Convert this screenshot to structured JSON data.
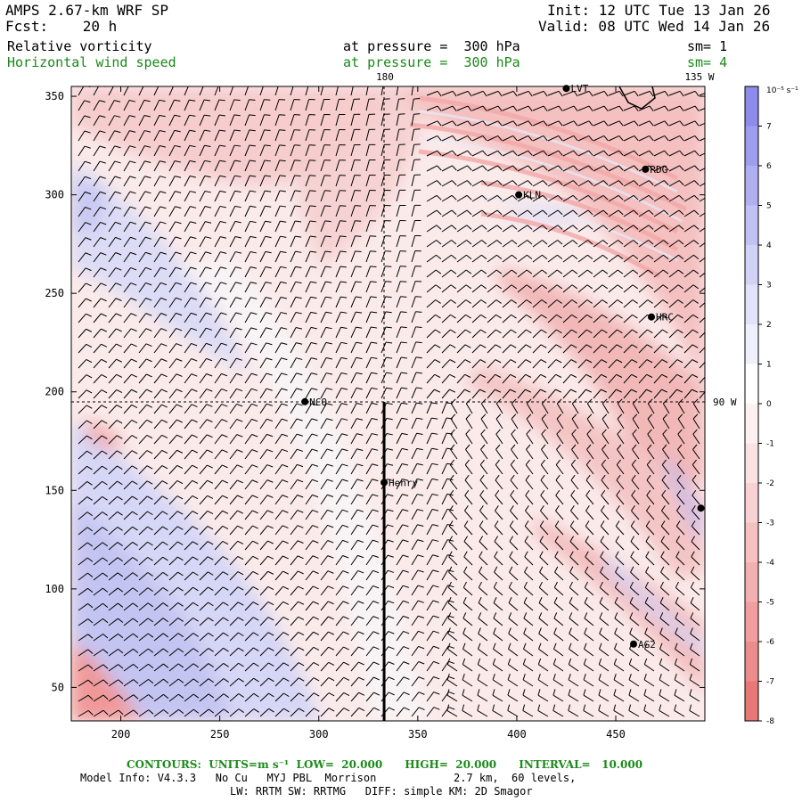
{
  "header": {
    "model_line": "AMPS 2.67-km WRF SP",
    "fcst_label": "Fcst:",
    "fcst_value": "20 h",
    "init_line": "Init: 12 UTC Tue 13 Jan 26",
    "valid_line": "Valid: 08 UTC Wed 14 Jan 26",
    "field1_name": "Relative vorticity",
    "field1_level": "at pressure =  300 hPa",
    "field1_sm": "sm= 1",
    "field2_name": "Horizontal wind speed",
    "field2_level": "at pressure =  300 hPa",
    "field2_sm": "sm= 4"
  },
  "map": {
    "x_ticks": [
      "200",
      "250",
      "300",
      "350",
      "400",
      "450"
    ],
    "y_ticks": [
      "50",
      "100",
      "150",
      "200",
      "250",
      "300",
      "350"
    ],
    "x_range": [
      175,
      495
    ],
    "y_range": [
      33,
      355
    ],
    "meridian_label_180": "180",
    "meridian_label_135w": "135 W",
    "meridian_label_90w": "90 W",
    "stations": [
      {
        "name": "LVT",
        "x": 425,
        "y": 354
      },
      {
        "name": "RDG",
        "x": 465,
        "y": 313
      },
      {
        "name": "KLN",
        "x": 401,
        "y": 300
      },
      {
        "name": "HRC",
        "x": 468,
        "y": 238
      },
      {
        "name": "NCO",
        "x": 293,
        "y": 195
      },
      {
        "name": "Henry",
        "x": 333,
        "y": 154
      },
      {
        "name": "AG2",
        "x": 459,
        "y": 72
      },
      {
        "name": "",
        "x": 493,
        "y": 141
      }
    ],
    "cross_section_x": 333
  },
  "colorbar": {
    "units": "10⁻⁵ s⁻¹",
    "levels": [
      "7",
      "6",
      "5",
      "4",
      "3",
      "2",
      "1",
      "0",
      "-1",
      "-2",
      "-3",
      "-4",
      "-5",
      "-6",
      "-7",
      "-8"
    ],
    "colors": [
      "#8c8cea",
      "#9e9eee",
      "#b0b0f1",
      "#c1c1f4",
      "#d2d2f7",
      "#e2e2fa",
      "#f0f0fc",
      "#ffffff",
      "#fdf0f0",
      "#fbe2e2",
      "#f8d2d2",
      "#f6c1c1",
      "#f3b0b0",
      "#f09e9e",
      "#ec8c8c",
      "#e87878"
    ]
  },
  "footer": {
    "contours_line": "CONTOURS:  UNITS=m s⁻¹  LOW=  20.000      HIGH=  20.000      INTERVAL=   10.000",
    "model_info": "Model Info: V4.3.3   No Cu   MYJ PBL  Morrison            2.7 km,  60 levels,",
    "physics": "LW: RRTM SW: RRTMG   DIFF: simple KM: 2D Smagor"
  }
}
